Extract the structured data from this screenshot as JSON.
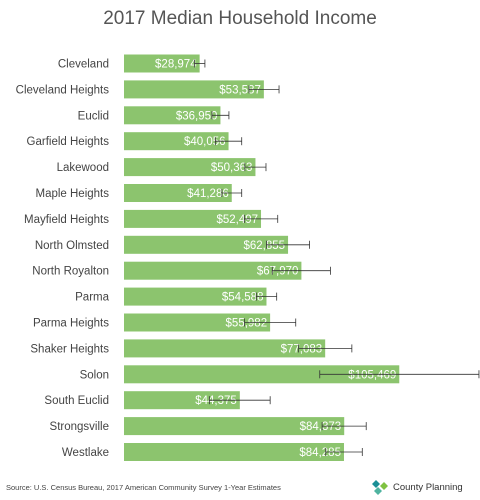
{
  "chart_data": {
    "type": "bar",
    "orientation": "horizontal",
    "title": "2017 Median Household Income",
    "categories": [
      "Cleveland",
      "Cleveland Heights",
      "Euclid",
      "Garfield Heights",
      "Lakewood",
      "Maple Heights",
      "Mayfield Heights",
      "North Olmsted",
      "North Royalton",
      "Parma",
      "Parma Heights",
      "Shaker Heights",
      "Solon",
      "South Euclid",
      "Strongsville",
      "Westlake"
    ],
    "values": [
      28974,
      53587,
      36950,
      40056,
      50363,
      41286,
      52497,
      62855,
      67970,
      54588,
      55982,
      77083,
      105469,
      44375,
      84373,
      84285
    ],
    "value_labels": [
      "$28,974",
      "$53,587",
      "$36,950",
      "$40,056",
      "$50,363",
      "$41,286",
      "$52,497",
      "$62,855",
      "$67,970",
      "$54,588",
      "$55,982",
      "$77,083",
      "$105,469",
      "$44,375",
      "$84,373",
      "$84,285"
    ],
    "error_high": [
      31000,
      59400,
      40200,
      45100,
      54400,
      45100,
      58900,
      71100,
      79100,
      58500,
      65800,
      87300,
      136000,
      56000,
      92800,
      91300
    ],
    "error_low": [
      27000,
      47900,
      33700,
      35000,
      46300,
      37500,
      46100,
      54600,
      56800,
      50700,
      46200,
      66900,
      75000,
      32700,
      75900,
      77300
    ],
    "xlim": [
      0,
      140000
    ],
    "grid": false,
    "legend": "none",
    "colors": {
      "bar": "#8cc46e",
      "label": "#ffffff",
      "error_bar": "#333333",
      "category_text": "#444444"
    }
  },
  "footer": {
    "source": "Source: U.S. Census Bureau, 2017 American Community Survey 1-Year Estimates",
    "brand": "County Planning",
    "brand_icon": "county-planning-logo-icon",
    "brand_colors": {
      "primary": "#1a8f96",
      "secondary": "#7fc241"
    }
  }
}
